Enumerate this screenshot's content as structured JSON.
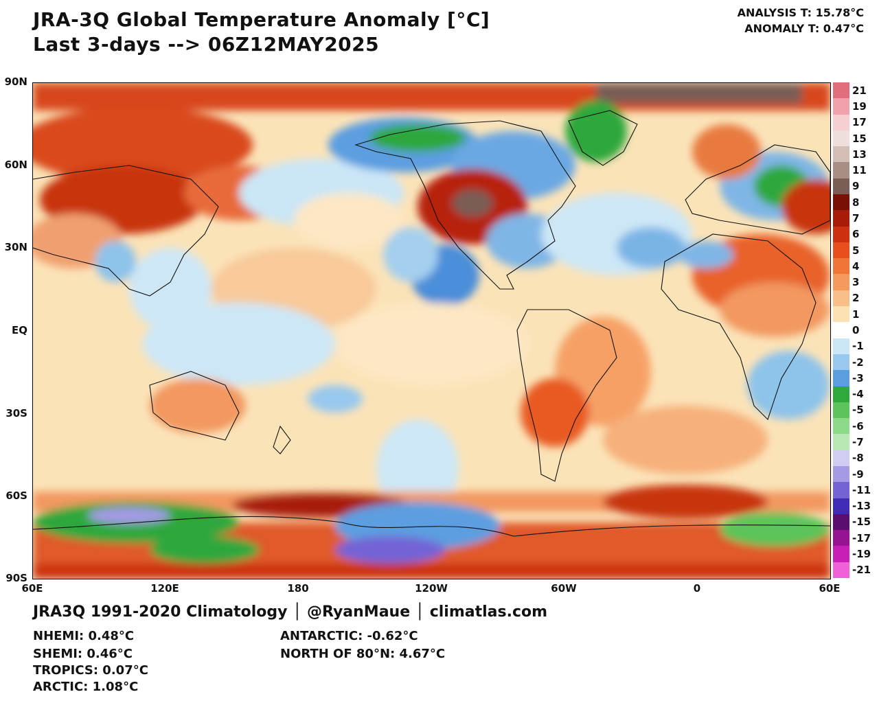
{
  "header": {
    "title_line1": "JRA-3Q Global Temperature Anomaly [°C]",
    "title_line2": "Last 3-days --> 06Z12MAY2025",
    "analysis_t": "ANALYSIS T: 15.78°C",
    "anomaly_t": "ANOMALY T: 0.47°C"
  },
  "axes": {
    "lat_labels": [
      "90N",
      "60N",
      "30N",
      "EQ",
      "30S",
      "60S",
      "90S"
    ],
    "lon_labels": [
      "60E",
      "120E",
      "180",
      "120W",
      "60W",
      "0",
      "60E"
    ]
  },
  "colorbar": {
    "labels": [
      "21",
      "19",
      "17",
      "15",
      "13",
      "11",
      "9",
      "8",
      "7",
      "6",
      "5",
      "4",
      "3",
      "2",
      "1",
      "0",
      "-1",
      "-2",
      "-3",
      "-4",
      "-5",
      "-6",
      "-7",
      "-8",
      "-9",
      "-11",
      "-13",
      "-15",
      "-17",
      "-19",
      "-21"
    ],
    "colors": [
      "#e26d7d",
      "#f0a2ac",
      "#f6cfd3",
      "#efdfdc",
      "#d3bdb5",
      "#a88e85",
      "#7a5d55",
      "#7a1005",
      "#a81b08",
      "#cc300e",
      "#e84f1c",
      "#f27538",
      "#f59a5c",
      "#f8c088",
      "#fbe2b3",
      "#ffffff",
      "#cbe6f6",
      "#98c8ee",
      "#5b9ee0",
      "#2fa83c",
      "#5cc45a",
      "#8dd98a",
      "#b9e8b5",
      "#d0cdf2",
      "#a49ae6",
      "#7363d5",
      "#3f2bb6",
      "#5a0f70",
      "#961491",
      "#c820b6",
      "#f060d8"
    ]
  },
  "footer": {
    "credits": "JRA3Q 1991-2020 Climatology │ @RyanMaue │ climatlas.com",
    "nhemi": "NHEMI: 0.48°C",
    "shemi": "SHEMI: 0.46°C",
    "tropics": "TROPICS: 0.07°C",
    "arctic": "ARCTIC: 1.08°C",
    "antarctic": "ANTARCTIC: -0.62°C",
    "north_of_80n": "NORTH OF 80°N: 4.67°C"
  }
}
